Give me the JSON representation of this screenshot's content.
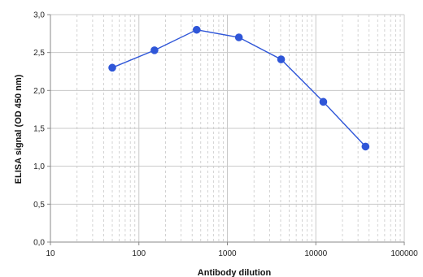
{
  "chart_data": {
    "type": "line",
    "title": "",
    "xlabel": "Antibody dilution",
    "ylabel": "ELISA signal (OD 450 nm)",
    "x_scale": "log",
    "xlim": [
      10,
      100000
    ],
    "ylim": [
      0.0,
      3.0
    ],
    "x_ticks": [
      10,
      100,
      1000,
      10000,
      100000
    ],
    "x_tick_labels": [
      "10",
      "100",
      "1000",
      "10000",
      "100000"
    ],
    "y_ticks": [
      0.0,
      0.5,
      1.0,
      1.5,
      2.0,
      2.5,
      3.0
    ],
    "y_tick_labels": [
      "0,0",
      "0,5",
      "1,0",
      "1,5",
      "2,0",
      "2,5",
      "3,0"
    ],
    "grid": true,
    "series": [
      {
        "color": "#2f56d8",
        "x": [
          50,
          150,
          450,
          1350,
          4050,
          12150,
          36450
        ],
        "y": [
          2.3,
          2.53,
          2.8,
          2.7,
          2.41,
          1.85,
          1.26
        ]
      }
    ]
  },
  "colors": {
    "plot_background": "#ffffff",
    "major_grid": "#c8c8c8",
    "minor_grid": "#c8c8c8",
    "axis": "#888888",
    "series": "#2f56d8"
  }
}
